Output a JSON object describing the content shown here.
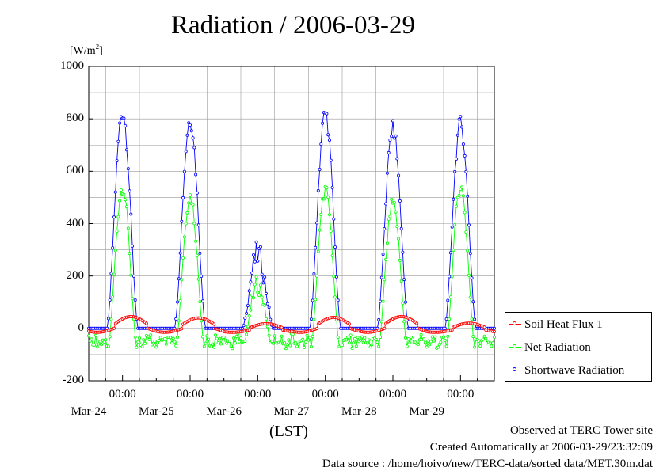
{
  "chart_data": {
    "type": "line",
    "title": "Radiation / 2006-03-29",
    "unit_label_base": "[W/m",
    "unit_label_sup": "2",
    "unit_label_end": "]",
    "xlabel": "(LST)",
    "ylim": [
      -200,
      1000
    ],
    "y_ticks": [
      "1000",
      "800",
      "600",
      "400",
      "200",
      "0",
      "-200"
    ],
    "y_tick_values": [
      1000,
      800,
      600,
      400,
      200,
      0,
      -200
    ],
    "x_range_hours": [
      0,
      144
    ],
    "x_ticks": [
      {
        "time": "00:00",
        "date": "Mar-24",
        "hour": 12
      },
      {
        "time": "00:00",
        "date": "Mar-25",
        "hour": 36
      },
      {
        "time": "00:00",
        "date": "Mar-26",
        "hour": 60
      },
      {
        "time": "00:00",
        "date": "Mar-27",
        "hour": 84
      },
      {
        "time": "00:00",
        "date": "Mar-28",
        "hour": 108
      },
      {
        "time": "00:00",
        "date": "Mar-29",
        "hour": 132
      }
    ],
    "series": [
      {
        "name": "Soil Heat Flux 1",
        "color": "#ff0000",
        "daily_peaks": [
          45,
          40,
          18,
          42,
          45,
          20
        ],
        "night_min": -15
      },
      {
        "name": "Net Radiation",
        "color": "#00ff00",
        "daily_peaks": [
          545,
          510,
          185,
          535,
          490,
          550
        ],
        "night_min": -70
      },
      {
        "name": "Shortwave Radiation",
        "color": "#0000ff",
        "daily_peaks": [
          835,
          805,
          305,
          830,
          770,
          790
        ],
        "night_min": 0
      }
    ],
    "grid": true,
    "legend": "right"
  },
  "footer": {
    "line1": "Observed at TERC Tower site",
    "line2": "Created Automatically at 2006-03-29/23:32:09",
    "line3": "Data source : /home/hoivo/new/TERC-data/sorted  data/MET.30m.dat"
  }
}
